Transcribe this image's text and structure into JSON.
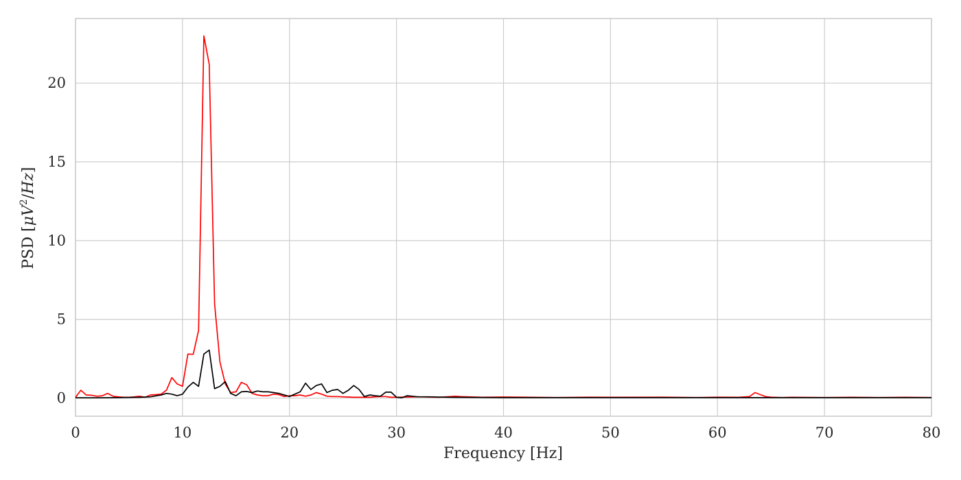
{
  "chart_data": {
    "type": "line",
    "title": "",
    "xlabel": "Frequency [Hz]",
    "ylabel_parts": [
      "PSD [",
      "μV",
      "2",
      "/",
      "Hz",
      "]"
    ],
    "xlim": [
      0,
      80
    ],
    "ylim": [
      -1.15,
      24.1
    ],
    "x_ticks": [
      0,
      10,
      20,
      30,
      40,
      50,
      60,
      70,
      80
    ],
    "x_tick_labels": [
      "0",
      "10",
      "20",
      "30",
      "40",
      "50",
      "60",
      "70",
      "80"
    ],
    "y_ticks": [
      0,
      5,
      10,
      15,
      20
    ],
    "y_tick_labels": [
      "0",
      "5",
      "10",
      "15",
      "20"
    ],
    "grid": true,
    "legend": "none",
    "series": [
      {
        "color": "#ff0000",
        "x": [
          0,
          0.5,
          1,
          1.5,
          2,
          2.5,
          3,
          3.5,
          4,
          4.5,
          5,
          5.5,
          6,
          6.5,
          7,
          7.5,
          8,
          8.5,
          9,
          9.5,
          10,
          10.5,
          11,
          11.5,
          12,
          12.5,
          13,
          13.5,
          14,
          14.5,
          15,
          15.5,
          16,
          16.5,
          17,
          17.5,
          18,
          18.5,
          19,
          19.5,
          20,
          20.5,
          21,
          21.5,
          22,
          22.5,
          23,
          23.5,
          24,
          24.5,
          25,
          25.5,
          26,
          26.5,
          27,
          27.5,
          28,
          28.5,
          29,
          29.5,
          30,
          32,
          34,
          35.5,
          36,
          38,
          40,
          45,
          48,
          50,
          55,
          58,
          60,
          62,
          63,
          63.5,
          64,
          64.5,
          65,
          66,
          67,
          70,
          72.5,
          75,
          77.5,
          80
        ],
        "y": [
          0.05,
          0.5,
          0.2,
          0.18,
          0.12,
          0.15,
          0.3,
          0.12,
          0.08,
          0.05,
          0.05,
          0.08,
          0.12,
          0.05,
          0.2,
          0.22,
          0.25,
          0.5,
          1.3,
          0.9,
          0.75,
          2.8,
          2.78,
          4.3,
          23.0,
          21.2,
          6.0,
          2.3,
          0.9,
          0.35,
          0.4,
          1.0,
          0.85,
          0.3,
          0.2,
          0.15,
          0.15,
          0.25,
          0.22,
          0.1,
          0.15,
          0.15,
          0.2,
          0.12,
          0.2,
          0.35,
          0.25,
          0.12,
          0.1,
          0.1,
          0.08,
          0.07,
          0.05,
          0.05,
          0.05,
          0.05,
          0.08,
          0.1,
          0.1,
          0.05,
          0.05,
          0.08,
          0.05,
          0.12,
          0.1,
          0.05,
          0.07,
          0.04,
          0.06,
          0.05,
          0.06,
          0.04,
          0.06,
          0.05,
          0.1,
          0.35,
          0.22,
          0.1,
          0.06,
          0.04,
          0.05,
          0.04,
          0.05,
          0.04,
          0.05,
          0.04
        ]
      },
      {
        "color": "#000000",
        "x": [
          0,
          2,
          4,
          6,
          7,
          8,
          8.5,
          9,
          9.5,
          10,
          10.5,
          11,
          11.5,
          12,
          12.5,
          13,
          13.5,
          14,
          14.5,
          15,
          15.5,
          16,
          16.5,
          17,
          17.5,
          18,
          18.5,
          19,
          19.5,
          20,
          20.5,
          21,
          21.5,
          22,
          22.5,
          23,
          23.5,
          24,
          24.5,
          25,
          25.5,
          26,
          26.5,
          27,
          27.5,
          28,
          28.5,
          29,
          29.5,
          30,
          30.5,
          31,
          32,
          33,
          35,
          40,
          50,
          60,
          70,
          80
        ],
        "y": [
          0.02,
          0.02,
          0.03,
          0.05,
          0.08,
          0.2,
          0.3,
          0.25,
          0.15,
          0.25,
          0.7,
          1.0,
          0.75,
          2.8,
          3.05,
          0.6,
          0.75,
          1.05,
          0.3,
          0.15,
          0.4,
          0.42,
          0.35,
          0.45,
          0.4,
          0.4,
          0.35,
          0.3,
          0.2,
          0.1,
          0.25,
          0.4,
          0.95,
          0.55,
          0.8,
          0.9,
          0.35,
          0.5,
          0.55,
          0.3,
          0.5,
          0.8,
          0.55,
          0.1,
          0.2,
          0.15,
          0.12,
          0.38,
          0.38,
          0.05,
          0.02,
          0.15,
          0.08,
          0.08,
          0.05,
          0.03,
          0.03,
          0.03,
          0.03,
          0.03
        ]
      }
    ]
  }
}
